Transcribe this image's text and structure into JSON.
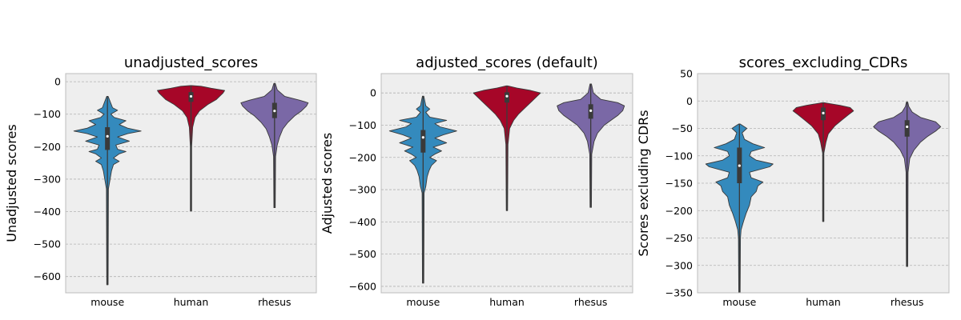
{
  "colors": {
    "panel_bg": "#eeeeee",
    "grid": "#b2b2b2",
    "mouse": "#348abd",
    "human": "#a60628",
    "rhesus": "#7a68a6",
    "outline": "#3a3a3a"
  },
  "chart_data": [
    {
      "type": "violin",
      "title": "unadjusted_scores",
      "ylabel": "Unadjusted scores",
      "categories": [
        "mouse",
        "human",
        "rhesus"
      ],
      "ylim": [
        -650,
        25
      ],
      "yticks": [
        0,
        -100,
        -200,
        -300,
        -400,
        -500,
        -600
      ],
      "ytick_labels": [
        "0",
        "−100",
        "−200",
        "−300",
        "−400",
        "−500",
        "−600"
      ],
      "grid": true,
      "series": [
        {
          "min": -625,
          "max": -45,
          "q1": -210,
          "median": -168,
          "q3": -140,
          "profile": [
            [
              -625,
              0.02
            ],
            [
              -330,
              0.03
            ],
            [
              -300,
              0.08
            ],
            [
              -275,
              0.12
            ],
            [
              -255,
              0.18
            ],
            [
              -245,
              0.35
            ],
            [
              -235,
              0.18
            ],
            [
              -222,
              0.35
            ],
            [
              -215,
              0.55
            ],
            [
              -208,
              0.3
            ],
            [
              -195,
              0.25
            ],
            [
              -183,
              0.65
            ],
            [
              -170,
              0.3
            ],
            [
              -160,
              0.6
            ],
            [
              -152,
              1.0
            ],
            [
              -143,
              0.6
            ],
            [
              -132,
              0.35
            ],
            [
              -120,
              0.55
            ],
            [
              -110,
              0.2
            ],
            [
              -100,
              0.1
            ],
            [
              -88,
              0.3
            ],
            [
              -80,
              0.15
            ],
            [
              -45,
              0.02
            ]
          ]
        },
        {
          "min": -398,
          "max": -12,
          "q1": -62,
          "median": -45,
          "q3": -32,
          "profile": [
            [
              -398,
              0.02
            ],
            [
              -200,
              0.02
            ],
            [
              -140,
              0.05
            ],
            [
              -110,
              0.12
            ],
            [
              -90,
              0.25
            ],
            [
              -70,
              0.5
            ],
            [
              -55,
              0.75
            ],
            [
              -45,
              0.85
            ],
            [
              -35,
              0.95
            ],
            [
              -27,
              1.0
            ],
            [
              -20,
              0.6
            ],
            [
              -14,
              0.3
            ],
            [
              -12,
              0.02
            ]
          ]
        },
        {
          "min": -388,
          "max": -5,
          "q1": -112,
          "median": -90,
          "q3": -65,
          "profile": [
            [
              -388,
              0.02
            ],
            [
              -230,
              0.03
            ],
            [
              -195,
              0.08
            ],
            [
              -170,
              0.15
            ],
            [
              -145,
              0.25
            ],
            [
              -125,
              0.4
            ],
            [
              -105,
              0.6
            ],
            [
              -90,
              0.8
            ],
            [
              -75,
              0.95
            ],
            [
              -65,
              1.0
            ],
            [
              -57,
              0.75
            ],
            [
              -45,
              0.3
            ],
            [
              -25,
              0.08
            ],
            [
              -5,
              0.02
            ]
          ]
        }
      ]
    },
    {
      "type": "violin",
      "title": "adjusted_scores (default)",
      "ylabel": "Adjusted scores",
      "categories": [
        "mouse",
        "human",
        "rhesus"
      ],
      "ylim": [
        -620,
        60
      ],
      "yticks": [
        0,
        -100,
        -200,
        -300,
        -400,
        -500,
        -600
      ],
      "ytick_labels": [
        "0",
        "−100",
        "−200",
        "−300",
        "−400",
        "−500",
        "−600"
      ],
      "grid": true,
      "series": [
        {
          "min": -590,
          "max": -10,
          "q1": -185,
          "median": -138,
          "q3": -115,
          "profile": [
            [
              -590,
              0.02
            ],
            [
              -310,
              0.03
            ],
            [
              -290,
              0.08
            ],
            [
              -260,
              0.12
            ],
            [
              -240,
              0.18
            ],
            [
              -225,
              0.25
            ],
            [
              -210,
              0.4
            ],
            [
              -200,
              0.2
            ],
            [
              -190,
              0.35
            ],
            [
              -180,
              0.55
            ],
            [
              -168,
              0.3
            ],
            [
              -155,
              0.7
            ],
            [
              -140,
              0.35
            ],
            [
              -130,
              0.6
            ],
            [
              -118,
              1.0
            ],
            [
              -105,
              0.5
            ],
            [
              -95,
              0.35
            ],
            [
              -85,
              0.7
            ],
            [
              -75,
              0.2
            ],
            [
              -60,
              0.08
            ],
            [
              -50,
              0.2
            ],
            [
              -40,
              0.08
            ],
            [
              -10,
              0.02
            ]
          ]
        },
        {
          "min": -365,
          "max": 22,
          "q1": -30,
          "median": -10,
          "q3": 2,
          "profile": [
            [
              -365,
              0.02
            ],
            [
              -160,
              0.03
            ],
            [
              -110,
              0.08
            ],
            [
              -85,
              0.2
            ],
            [
              -65,
              0.35
            ],
            [
              -45,
              0.55
            ],
            [
              -25,
              0.75
            ],
            [
              -10,
              0.9
            ],
            [
              0,
              1.0
            ],
            [
              8,
              0.7
            ],
            [
              15,
              0.3
            ],
            [
              22,
              0.02
            ]
          ]
        },
        {
          "min": -355,
          "max": 28,
          "q1": -80,
          "median": -55,
          "q3": -35,
          "profile": [
            [
              -355,
              0.02
            ],
            [
              -190,
              0.03
            ],
            [
              -150,
              0.1
            ],
            [
              -125,
              0.2
            ],
            [
              -100,
              0.4
            ],
            [
              -85,
              0.6
            ],
            [
              -70,
              0.8
            ],
            [
              -55,
              0.95
            ],
            [
              -40,
              1.0
            ],
            [
              -30,
              0.8
            ],
            [
              -20,
              0.3
            ],
            [
              0,
              0.08
            ],
            [
              28,
              0.02
            ]
          ]
        }
      ]
    },
    {
      "type": "violin",
      "title": "scores_excluding_CDRs",
      "ylabel": "Scores excluding CDRs",
      "categories": [
        "mouse",
        "human",
        "rhesus"
      ],
      "ylim": [
        -350,
        50
      ],
      "yticks": [
        50,
        0,
        -50,
        -100,
        -150,
        -200,
        -250,
        -300,
        -350
      ],
      "ytick_labels": [
        "50",
        "0",
        "−50",
        "−100",
        "−150",
        "−200",
        "−250",
        "−300",
        "−350"
      ],
      "grid": true,
      "series": [
        {
          "min": -350,
          "max": -42,
          "q1": -150,
          "median": -118,
          "q3": -85,
          "profile": [
            [
              -350,
              0.02
            ],
            [
              -250,
              0.03
            ],
            [
              -235,
              0.05
            ],
            [
              -220,
              0.12
            ],
            [
              -205,
              0.2
            ],
            [
              -190,
              0.3
            ],
            [
              -175,
              0.35
            ],
            [
              -165,
              0.5
            ],
            [
              -155,
              0.55
            ],
            [
              -148,
              0.7
            ],
            [
              -140,
              0.35
            ],
            [
              -130,
              0.3
            ],
            [
              -120,
              0.9
            ],
            [
              -115,
              1.0
            ],
            [
              -108,
              0.5
            ],
            [
              -100,
              0.3
            ],
            [
              -92,
              0.35
            ],
            [
              -85,
              0.75
            ],
            [
              -78,
              0.4
            ],
            [
              -70,
              0.15
            ],
            [
              -58,
              0.08
            ],
            [
              -50,
              0.22
            ],
            [
              -45,
              0.1
            ],
            [
              -42,
              0.02
            ]
          ]
        },
        {
          "min": -220,
          "max": -3,
          "q1": -35,
          "median": -22,
          "q3": -12,
          "profile": [
            [
              -220,
              0.02
            ],
            [
              -95,
              0.02
            ],
            [
              -75,
              0.08
            ],
            [
              -60,
              0.15
            ],
            [
              -45,
              0.35
            ],
            [
              -35,
              0.55
            ],
            [
              -25,
              0.75
            ],
            [
              -18,
              0.9
            ],
            [
              -12,
              0.8
            ],
            [
              -8,
              0.5
            ],
            [
              -3,
              0.02
            ]
          ]
        },
        {
          "min": -302,
          "max": -2,
          "q1": -65,
          "median": -47,
          "q3": -35,
          "profile": [
            [
              -302,
              0.02
            ],
            [
              -130,
              0.03
            ],
            [
              -105,
              0.08
            ],
            [
              -90,
              0.2
            ],
            [
              -75,
              0.4
            ],
            [
              -65,
              0.6
            ],
            [
              -55,
              0.85
            ],
            [
              -47,
              1.0
            ],
            [
              -38,
              0.85
            ],
            [
              -30,
              0.4
            ],
            [
              -20,
              0.15
            ],
            [
              -10,
              0.05
            ],
            [
              -2,
              0.02
            ]
          ]
        }
      ]
    }
  ]
}
